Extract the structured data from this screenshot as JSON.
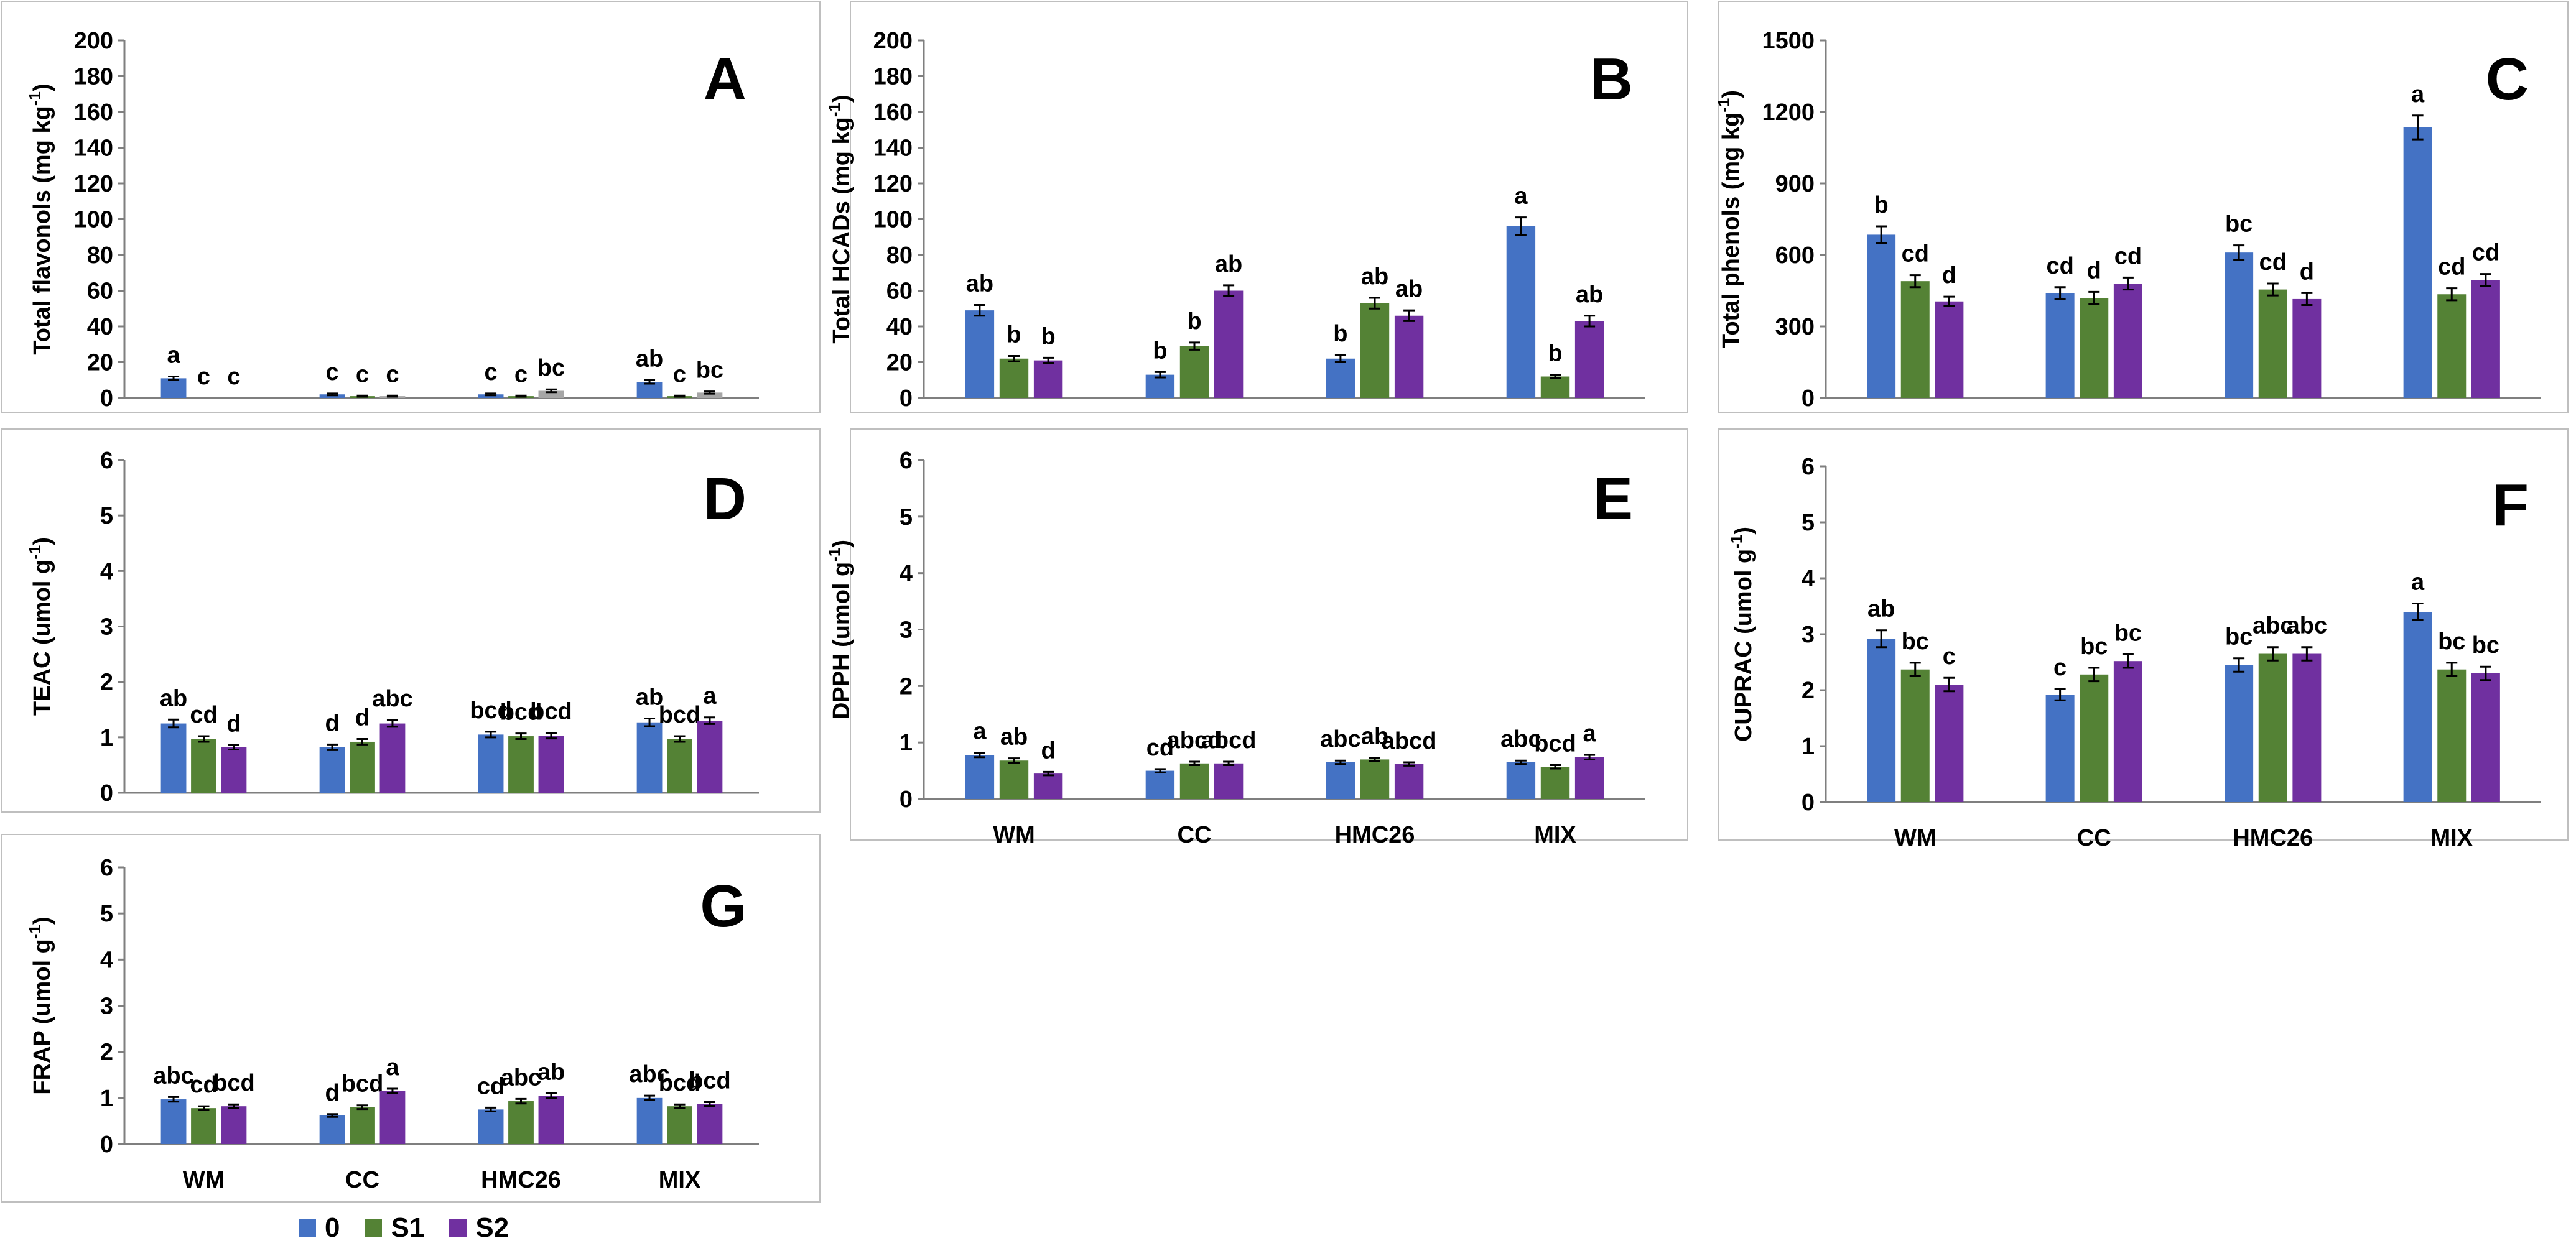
{
  "colors": {
    "s0": "#4472C4",
    "s1": "#548235",
    "s2": "#7030A0",
    "gray": "#A6A6A6",
    "axis": "#7f7f7f",
    "text": "#000000"
  },
  "legend": [
    {
      "name": "0",
      "color": "#4472C4"
    },
    {
      "name": "S1",
      "color": "#548235"
    },
    {
      "name": "S2",
      "color": "#7030A0"
    }
  ],
  "chart_data": [
    {
      "id": "A",
      "panel_label": "A",
      "type": "bar",
      "ylabel": "Total flavonols (mg kg",
      "ylabel_sup": "-1",
      "ylabel_end": ")",
      "ylim": [
        0,
        200
      ],
      "yticks": [
        "0",
        "20",
        "40",
        "60",
        "80",
        "100",
        "120",
        "140",
        "160",
        "180",
        "200"
      ],
      "categories": [
        "WM",
        "CC",
        "HMC26",
        "MIX"
      ],
      "show_xlabels": false,
      "series": [
        {
          "name": "0",
          "values": [
            11,
            2,
            2,
            9
          ],
          "errors": [
            1,
            0.5,
            0.5,
            1
          ],
          "letters": [
            "a",
            "c",
            "c",
            "ab"
          ]
        },
        {
          "name": "S1",
          "values": [
            0,
            1,
            1,
            1
          ],
          "errors": [
            0,
            0.3,
            0.3,
            0.3
          ],
          "letters": [
            "c",
            "c",
            "c",
            "c"
          ]
        },
        {
          "name": "S2",
          "values": [
            0,
            1,
            4,
            3
          ],
          "errors": [
            0,
            0.3,
            0.8,
            0.6
          ],
          "letters": [
            "c",
            "c",
            "bc",
            "bc"
          ],
          "color": "#A6A6A6"
        }
      ]
    },
    {
      "id": "B",
      "panel_label": "B",
      "type": "bar",
      "ylabel": "Total HCADs (mg kg",
      "ylabel_sup": "-1",
      "ylabel_end": ")",
      "ylim": [
        0,
        200
      ],
      "yticks": [
        "0",
        "20",
        "40",
        "60",
        "80",
        "100",
        "120",
        "140",
        "160",
        "180",
        "200"
      ],
      "categories": [
        "WM",
        "CC",
        "HMC26",
        "MIX"
      ],
      "show_xlabels": false,
      "series": [
        {
          "name": "0",
          "values": [
            49,
            13,
            22,
            96
          ],
          "errors": [
            3,
            1.5,
            2,
            5
          ],
          "letters": [
            "ab",
            "b",
            "b",
            "a"
          ]
        },
        {
          "name": "S1",
          "values": [
            22,
            29,
            53,
            12
          ],
          "errors": [
            1.5,
            2,
            3,
            1
          ],
          "letters": [
            "b",
            "b",
            "ab",
            "b"
          ]
        },
        {
          "name": "S2",
          "values": [
            21,
            60,
            46,
            43
          ],
          "errors": [
            1.5,
            3,
            3,
            3
          ],
          "letters": [
            "b",
            "ab",
            "ab",
            "ab"
          ]
        }
      ]
    },
    {
      "id": "C",
      "panel_label": "C",
      "type": "bar",
      "ylabel": "Total phenols  (mg kg",
      "ylabel_sup": "-1",
      "ylabel_end": ")",
      "ylim": [
        0,
        1500
      ],
      "yticks": [
        "0",
        "300",
        "600",
        "900",
        "1200",
        "1500"
      ],
      "categories": [
        "WM",
        "CC",
        "HMC26",
        "MIX"
      ],
      "show_xlabels": false,
      "series": [
        {
          "name": "0",
          "values": [
            685,
            440,
            610,
            1135
          ],
          "errors": [
            35,
            25,
            30,
            50
          ],
          "letters": [
            "b",
            "cd",
            "bc",
            "a"
          ]
        },
        {
          "name": "S1",
          "values": [
            490,
            420,
            455,
            435
          ],
          "errors": [
            25,
            25,
            25,
            25
          ],
          "letters": [
            "cd",
            "d",
            "cd",
            "cd"
          ]
        },
        {
          "name": "S2",
          "values": [
            405,
            480,
            415,
            495
          ],
          "errors": [
            20,
            25,
            25,
            25
          ],
          "letters": [
            "d",
            "cd",
            "d",
            "cd"
          ]
        }
      ]
    },
    {
      "id": "D",
      "panel_label": "D",
      "type": "bar",
      "ylabel": "TEAC (umol g",
      "ylabel_sup": "-1",
      "ylabel_end": ")",
      "ylim": [
        0,
        6
      ],
      "yticks": [
        "0",
        "1",
        "2",
        "3",
        "4",
        "5",
        "6"
      ],
      "categories": [
        "WM",
        "CC",
        "HMC26",
        "MIX"
      ],
      "show_xlabels": false,
      "series": [
        {
          "name": "0",
          "values": [
            1.25,
            0.82,
            1.05,
            1.27
          ],
          "errors": [
            0.07,
            0.05,
            0.05,
            0.07
          ],
          "letters": [
            "ab",
            "d",
            "bcd",
            "ab"
          ]
        },
        {
          "name": "S1",
          "values": [
            0.97,
            0.92,
            1.02,
            0.97
          ],
          "errors": [
            0.05,
            0.05,
            0.05,
            0.05
          ],
          "letters": [
            "cd",
            "d",
            "bcd",
            "bcd"
          ]
        },
        {
          "name": "S2",
          "values": [
            0.82,
            1.25,
            1.03,
            1.3
          ],
          "errors": [
            0.04,
            0.06,
            0.05,
            0.06
          ],
          "letters": [
            "d",
            "abc",
            "bcd",
            "a"
          ]
        }
      ]
    },
    {
      "id": "E",
      "panel_label": "E",
      "type": "bar",
      "ylabel": "DPPH (umol g",
      "ylabel_sup": "-1",
      "ylabel_end": ")",
      "ylim": [
        0,
        6
      ],
      "yticks": [
        "0",
        "1",
        "2",
        "3",
        "4",
        "5",
        "6"
      ],
      "categories": [
        "WM",
        "CC",
        "HMC26",
        "MIX"
      ],
      "show_xlabels": true,
      "series": [
        {
          "name": "0",
          "values": [
            0.78,
            0.5,
            0.65,
            0.65
          ],
          "errors": [
            0.04,
            0.03,
            0.03,
            0.03
          ],
          "letters": [
            "a",
            "cd",
            "abc",
            "abc"
          ]
        },
        {
          "name": "S1",
          "values": [
            0.68,
            0.63,
            0.7,
            0.57
          ],
          "errors": [
            0.04,
            0.03,
            0.03,
            0.03
          ],
          "letters": [
            "ab",
            "abcd",
            "ab",
            "bcd"
          ]
        },
        {
          "name": "S2",
          "values": [
            0.45,
            0.63,
            0.62,
            0.74
          ],
          "errors": [
            0.03,
            0.03,
            0.03,
            0.04
          ],
          "letters": [
            "d",
            "abcd",
            "abcd",
            "a"
          ]
        }
      ]
    },
    {
      "id": "F",
      "panel_label": "F",
      "type": "bar",
      "ylabel": "CUPRAC (umol g",
      "ylabel_sup": "-1",
      "ylabel_end": ")",
      "ylim": [
        0,
        6
      ],
      "yticks": [
        "0",
        "1",
        "2",
        "3",
        "4",
        "5",
        "6"
      ],
      "categories": [
        "WM",
        "CC",
        "HMC26",
        "MIX"
      ],
      "show_xlabels": true,
      "series": [
        {
          "name": "0",
          "values": [
            2.92,
            1.92,
            2.45,
            3.4
          ],
          "errors": [
            0.15,
            0.1,
            0.12,
            0.15
          ],
          "letters": [
            "ab",
            "c",
            "bc",
            "a"
          ]
        },
        {
          "name": "S1",
          "values": [
            2.37,
            2.28,
            2.65,
            2.37
          ],
          "errors": [
            0.12,
            0.12,
            0.12,
            0.12
          ],
          "letters": [
            "bc",
            "bc",
            "abc",
            "bc"
          ]
        },
        {
          "name": "S2",
          "values": [
            2.1,
            2.52,
            2.65,
            2.3
          ],
          "errors": [
            0.12,
            0.12,
            0.12,
            0.12
          ],
          "letters": [
            "c",
            "bc",
            "abc",
            "bc"
          ]
        }
      ]
    },
    {
      "id": "G",
      "panel_label": "G",
      "type": "bar",
      "ylabel": "FRAP (umol g",
      "ylabel_sup": "-1",
      "ylabel_end": ")",
      "ylim": [
        0,
        6
      ],
      "yticks": [
        "0",
        "1",
        "2",
        "3",
        "4",
        "5",
        "6"
      ],
      "categories": [
        "WM",
        "CC",
        "HMC26",
        "MIX"
      ],
      "show_xlabels": true,
      "series": [
        {
          "name": "0",
          "values": [
            0.97,
            0.62,
            0.75,
            1.0
          ],
          "errors": [
            0.05,
            0.03,
            0.04,
            0.05
          ],
          "letters": [
            "abc",
            "d",
            "cd",
            "abc"
          ]
        },
        {
          "name": "S1",
          "values": [
            0.78,
            0.8,
            0.93,
            0.82
          ],
          "errors": [
            0.04,
            0.04,
            0.05,
            0.04
          ],
          "letters": [
            "cd",
            "bcd",
            "abc",
            "bcd"
          ]
        },
        {
          "name": "S2",
          "values": [
            0.82,
            1.15,
            1.05,
            0.87
          ],
          "errors": [
            0.04,
            0.05,
            0.05,
            0.04
          ],
          "letters": [
            "bcd",
            "a",
            "ab",
            "bcd"
          ]
        }
      ]
    }
  ]
}
